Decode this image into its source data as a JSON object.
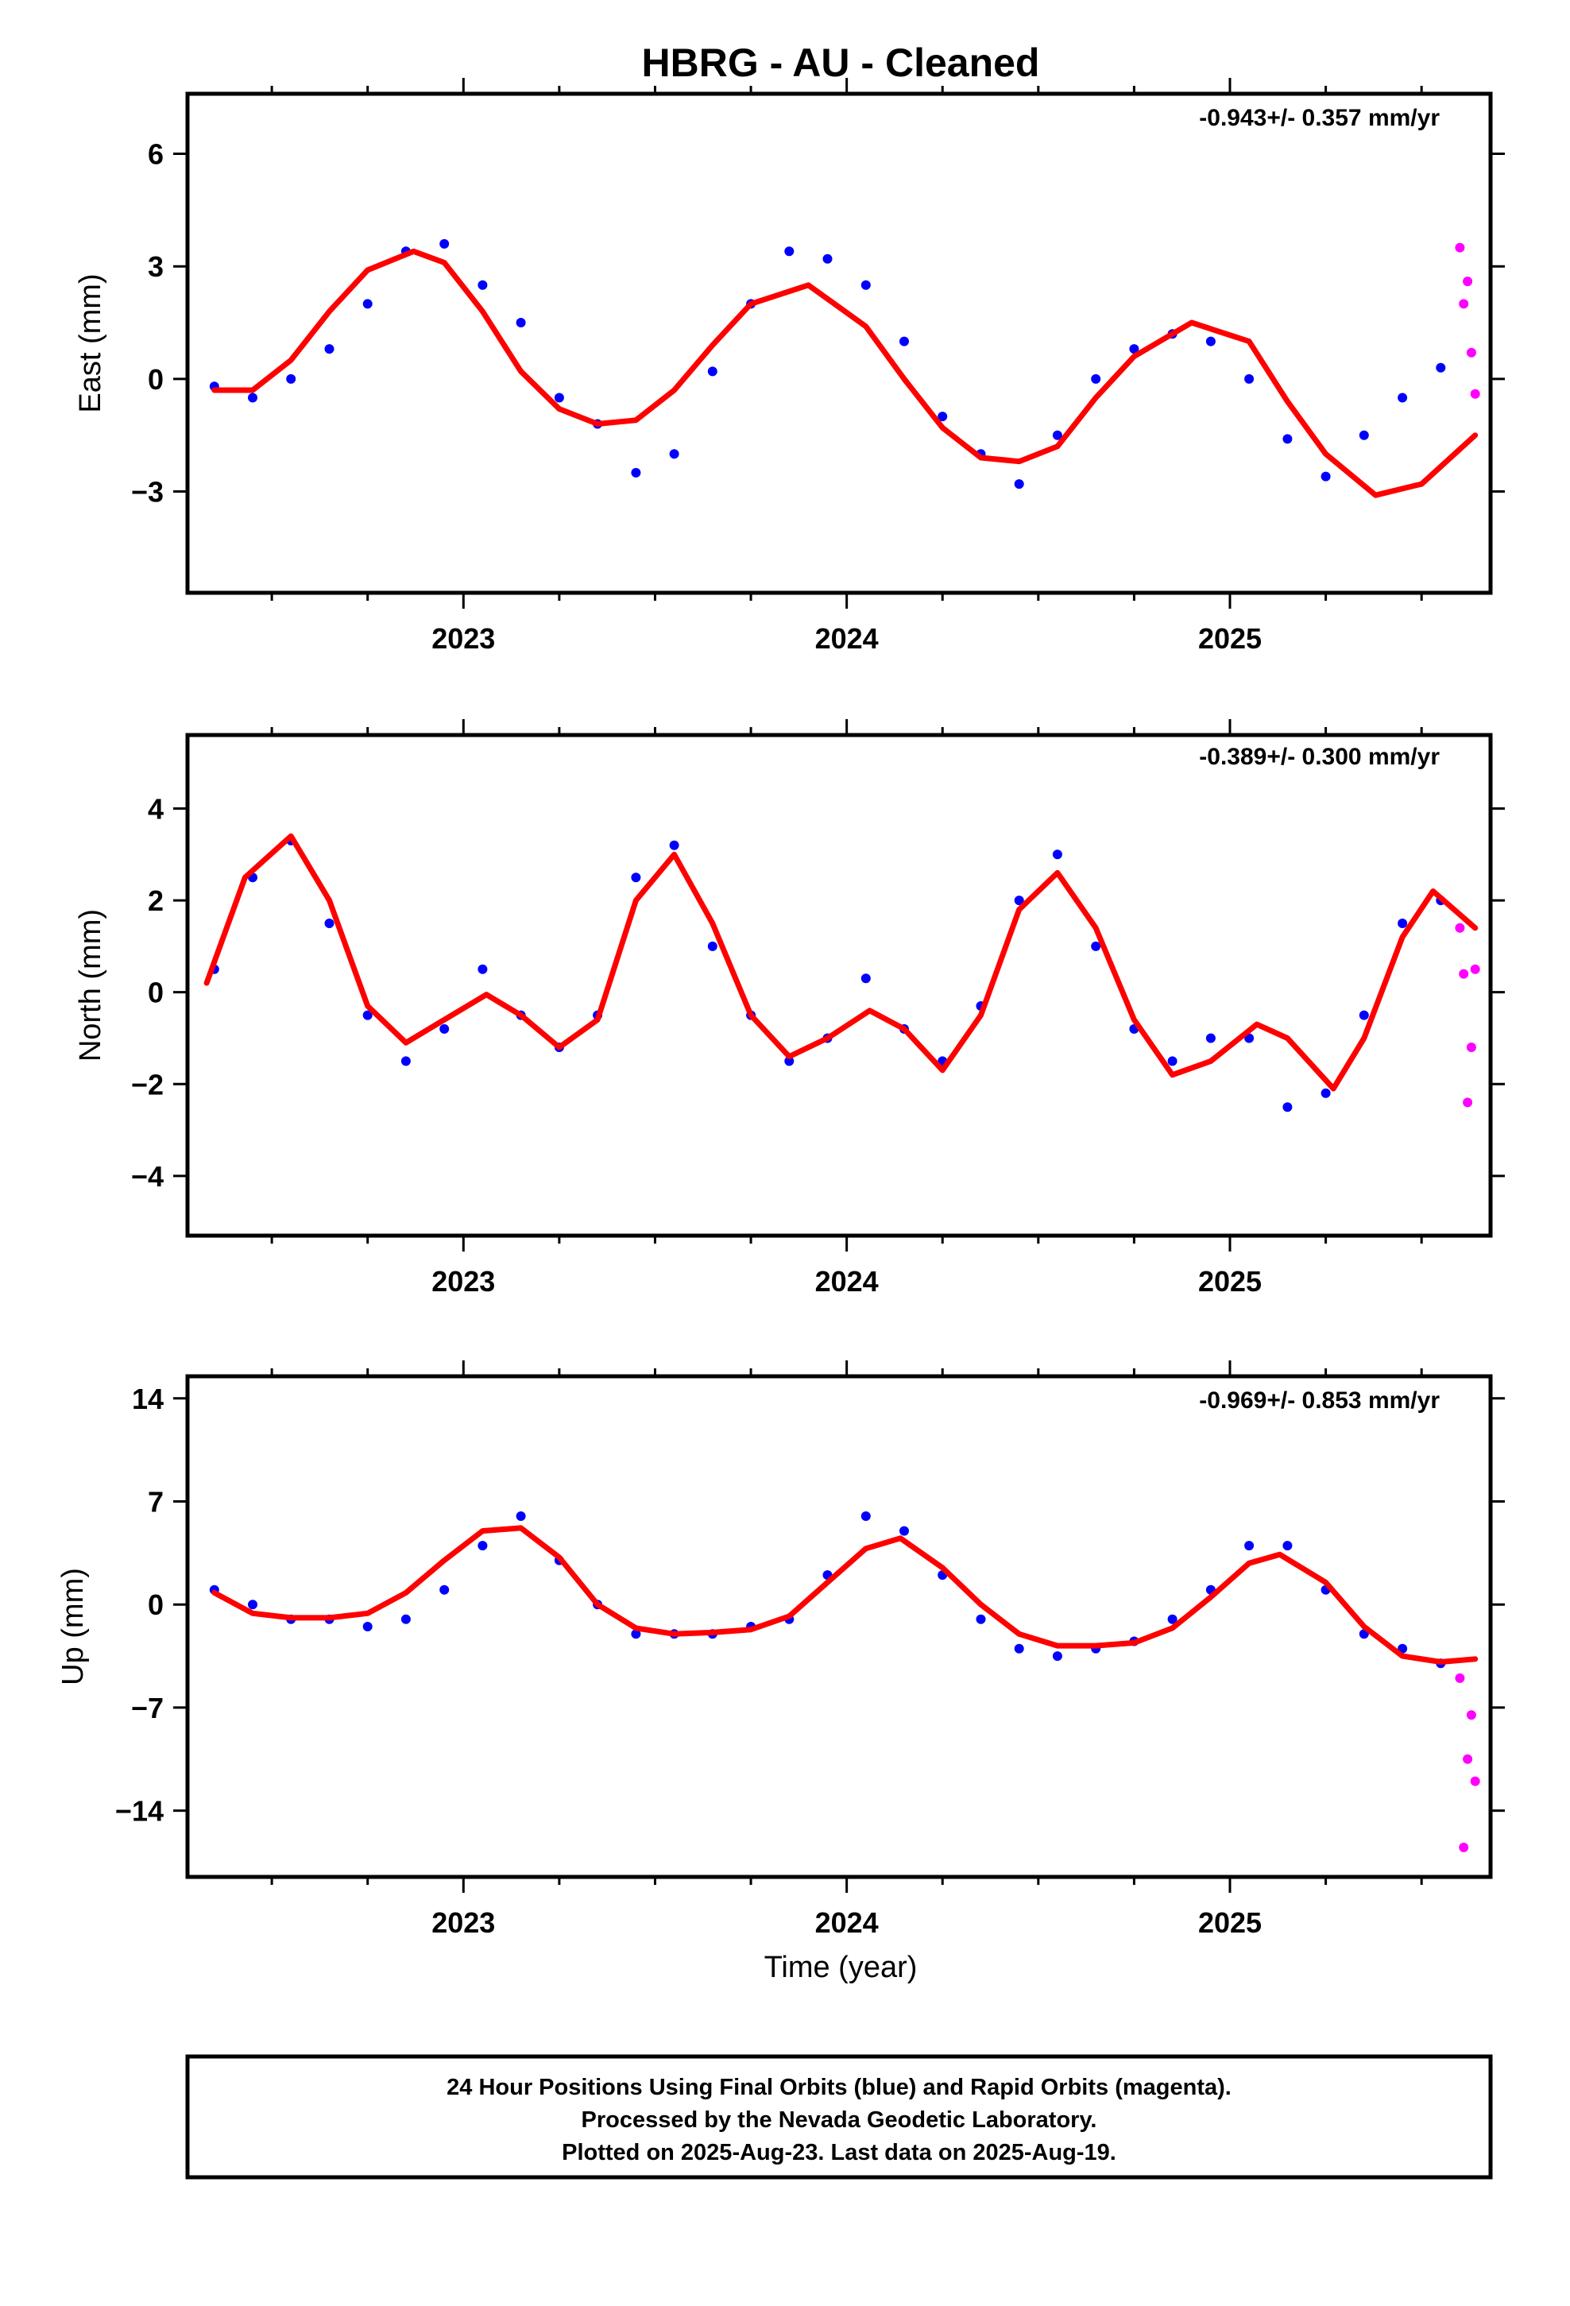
{
  "title": "HBRG  - AU - Cleaned",
  "colors": {
    "final_orbits": "#0000ff",
    "rapid_orbits": "#ff00ff",
    "model_fit": "#ff0000"
  },
  "chart_data": [
    {
      "type": "scatter",
      "component": "east",
      "ylabel": "East (mm)",
      "rate_text": "-0.943+/- 0.357 mm/yr",
      "xlim": [
        2022.28,
        2025.68
      ],
      "ylim": [
        -5.7,
        7.6
      ],
      "xticks": [
        2023,
        2024,
        2025
      ],
      "xtick_labels": [
        "2023",
        "2024",
        "2025"
      ],
      "yticks": [
        -3,
        0,
        3,
        6
      ],
      "ytick_labels": [
        "−3",
        "0",
        "3",
        "6"
      ],
      "x": [
        2022.35,
        2022.45,
        2022.55,
        2022.65,
        2022.75,
        2022.85,
        2022.95,
        2023.05,
        2023.15,
        2023.25,
        2023.35,
        2023.45,
        2023.55,
        2023.65,
        2023.75,
        2023.85,
        2023.95,
        2024.05,
        2024.15,
        2024.25,
        2024.35,
        2024.45,
        2024.55,
        2024.65,
        2024.75,
        2024.85,
        2024.95,
        2025.05,
        2025.15,
        2025.25,
        2025.35,
        2025.45,
        2025.55
      ],
      "series": [
        {
          "name": "Final Orbits",
          "values": [
            -0.2,
            -0.5,
            0.0,
            0.8,
            2.0,
            3.4,
            3.6,
            2.5,
            1.5,
            -0.5,
            -1.2,
            -2.5,
            -2.0,
            0.2,
            2.0,
            3.4,
            3.2,
            2.5,
            1.0,
            -1.0,
            -2.0,
            -2.8,
            -1.5,
            0.0,
            0.8,
            1.2,
            1.0,
            0.0,
            -1.6,
            -2.6,
            -1.5,
            -0.5,
            0.3
          ]
        },
        {
          "name": "Rapid Orbits",
          "x": [
            2025.6,
            2025.61,
            2025.62,
            2025.63,
            2025.64
          ],
          "values": [
            3.5,
            2.0,
            2.6,
            0.7,
            -0.4
          ]
        }
      ],
      "fit": {
        "x": [
          2022.35,
          2022.45,
          2022.55,
          2022.65,
          2022.75,
          2022.87,
          2022.95,
          2023.05,
          2023.15,
          2023.25,
          2023.35,
          2023.45,
          2023.55,
          2023.65,
          2023.75,
          2023.9,
          2024.05,
          2024.15,
          2024.25,
          2024.35,
          2024.45,
          2024.55,
          2024.65,
          2024.75,
          2024.9,
          2025.05,
          2025.15,
          2025.25,
          2025.38,
          2025.5,
          2025.64
        ],
        "values": [
          -0.3,
          -0.3,
          0.5,
          1.8,
          2.9,
          3.4,
          3.1,
          1.8,
          0.2,
          -0.8,
          -1.2,
          -1.1,
          -0.3,
          0.9,
          2.0,
          2.5,
          1.4,
          0.0,
          -1.3,
          -2.1,
          -2.2,
          -1.8,
          -0.5,
          0.6,
          1.5,
          1.0,
          -0.6,
          -2.0,
          -3.1,
          -2.8,
          -1.5
        ]
      }
    },
    {
      "type": "scatter",
      "component": "north",
      "ylabel": "North (mm)",
      "rate_text": "-0.389+/- 0.300 mm/yr",
      "xlim": [
        2022.28,
        2025.68
      ],
      "ylim": [
        -5.3,
        5.6
      ],
      "xticks": [
        2023,
        2024,
        2025
      ],
      "xtick_labels": [
        "2023",
        "2024",
        "2025"
      ],
      "yticks": [
        -4,
        -2,
        0,
        2,
        4
      ],
      "ytick_labels": [
        "−4",
        "−2",
        "0",
        "2",
        "4"
      ],
      "x": [
        2022.35,
        2022.45,
        2022.55,
        2022.65,
        2022.75,
        2022.85,
        2022.95,
        2023.05,
        2023.15,
        2023.25,
        2023.35,
        2023.45,
        2023.55,
        2023.65,
        2023.75,
        2023.85,
        2023.95,
        2024.05,
        2024.15,
        2024.25,
        2024.35,
        2024.45,
        2024.55,
        2024.65,
        2024.75,
        2024.85,
        2024.95,
        2025.05,
        2025.15,
        2025.25,
        2025.35,
        2025.45,
        2025.55
      ],
      "series": [
        {
          "name": "Final Orbits",
          "values": [
            0.5,
            2.5,
            3.3,
            1.5,
            -0.5,
            -1.5,
            -0.8,
            0.5,
            -0.5,
            -1.2,
            -0.5,
            2.5,
            3.2,
            1.0,
            -0.5,
            -1.5,
            -1.0,
            0.3,
            -0.8,
            -1.5,
            -0.3,
            2.0,
            3.0,
            1.0,
            -0.8,
            -1.5,
            -1.0,
            -1.0,
            -2.5,
            -2.2,
            -0.5,
            1.5,
            2.0
          ]
        },
        {
          "name": "Rapid Orbits",
          "x": [
            2025.6,
            2025.61,
            2025.62,
            2025.63,
            2025.64
          ],
          "values": [
            1.4,
            0.4,
            -2.4,
            -1.2,
            0.5
          ]
        }
      ],
      "fit": {
        "x": [
          2022.33,
          2022.43,
          2022.55,
          2022.65,
          2022.75,
          2022.85,
          2022.95,
          2023.06,
          2023.15,
          2023.25,
          2023.35,
          2023.45,
          2023.55,
          2023.65,
          2023.75,
          2023.85,
          2023.95,
          2024.06,
          2024.15,
          2024.25,
          2024.35,
          2024.45,
          2024.55,
          2024.65,
          2024.75,
          2024.85,
          2024.95,
          2025.07,
          2025.15,
          2025.27,
          2025.35,
          2025.45,
          2025.53,
          2025.64
        ],
        "values": [
          0.2,
          2.5,
          3.4,
          2.0,
          -0.3,
          -1.1,
          -0.6,
          -0.05,
          -0.5,
          -1.2,
          -0.6,
          2.0,
          3.0,
          1.5,
          -0.5,
          -1.4,
          -1.0,
          -0.4,
          -0.8,
          -1.7,
          -0.5,
          1.8,
          2.6,
          1.4,
          -0.6,
          -1.8,
          -1.5,
          -0.7,
          -1.0,
          -2.1,
          -1.0,
          1.2,
          2.2,
          1.4
        ]
      }
    },
    {
      "type": "scatter",
      "component": "up",
      "ylabel": "Up (mm)",
      "rate_text": "-0.969+/- 0.853 mm/yr",
      "xlim": [
        2022.28,
        2025.68
      ],
      "ylim": [
        -18.5,
        15.5
      ],
      "xticks": [
        2023,
        2024,
        2025
      ],
      "xtick_labels": [
        "2023",
        "2024",
        "2025"
      ],
      "yticks": [
        -14,
        -7,
        0,
        7,
        14
      ],
      "ytick_labels": [
        "−14",
        "−7",
        "0",
        "7",
        "14"
      ],
      "x": [
        2022.35,
        2022.45,
        2022.55,
        2022.65,
        2022.75,
        2022.85,
        2022.95,
        2023.05,
        2023.15,
        2023.25,
        2023.35,
        2023.45,
        2023.55,
        2023.65,
        2023.75,
        2023.85,
        2023.95,
        2024.05,
        2024.15,
        2024.25,
        2024.35,
        2024.45,
        2024.55,
        2024.65,
        2024.75,
        2024.85,
        2024.95,
        2025.05,
        2025.15,
        2025.25,
        2025.35,
        2025.45,
        2025.55
      ],
      "series": [
        {
          "name": "Final Orbits",
          "values": [
            1.0,
            0.0,
            -1.0,
            -1.0,
            -1.5,
            -1.0,
            1.0,
            4.0,
            6.0,
            3.0,
            0.0,
            -2.0,
            -2.0,
            -2.0,
            -1.5,
            -1.0,
            2.0,
            6.0,
            5.0,
            2.0,
            -1.0,
            -3.0,
            -3.5,
            -3.0,
            -2.5,
            -1.0,
            1.0,
            4.0,
            4.0,
            1.0,
            -2.0,
            -3.0,
            -4.0
          ]
        },
        {
          "name": "Rapid Orbits",
          "x": [
            2025.6,
            2025.61,
            2025.62,
            2025.63,
            2025.64
          ],
          "values": [
            -5.0,
            -16.5,
            -10.5,
            -7.5,
            -12.0
          ]
        }
      ],
      "fit": {
        "x": [
          2022.35,
          2022.45,
          2022.55,
          2022.65,
          2022.75,
          2022.85,
          2022.95,
          2023.05,
          2023.15,
          2023.25,
          2023.35,
          2023.45,
          2023.55,
          2023.65,
          2023.75,
          2023.85,
          2023.95,
          2024.05,
          2024.14,
          2024.25,
          2024.35,
          2024.45,
          2024.55,
          2024.65,
          2024.75,
          2024.85,
          2024.95,
          2025.05,
          2025.13,
          2025.25,
          2025.35,
          2025.45,
          2025.55,
          2025.64
        ],
        "values": [
          0.8,
          -0.6,
          -0.9,
          -0.9,
          -0.6,
          0.8,
          3.0,
          5.0,
          5.2,
          3.2,
          0.0,
          -1.6,
          -2.0,
          -1.9,
          -1.7,
          -0.8,
          1.5,
          3.8,
          4.5,
          2.5,
          0.0,
          -2.0,
          -2.8,
          -2.8,
          -2.6,
          -1.6,
          0.5,
          2.8,
          3.4,
          1.5,
          -1.5,
          -3.5,
          -3.9,
          -3.7
        ]
      }
    }
  ],
  "xlabel": "Time (year)",
  "footer": {
    "line1": "24 Hour Positions Using Final Orbits (blue) and Rapid Orbits (magenta).",
    "line2": "Processed by the Nevada Geodetic Laboratory.",
    "line3": "Plotted on 2025-Aug-23. Last data on 2025-Aug-19."
  }
}
